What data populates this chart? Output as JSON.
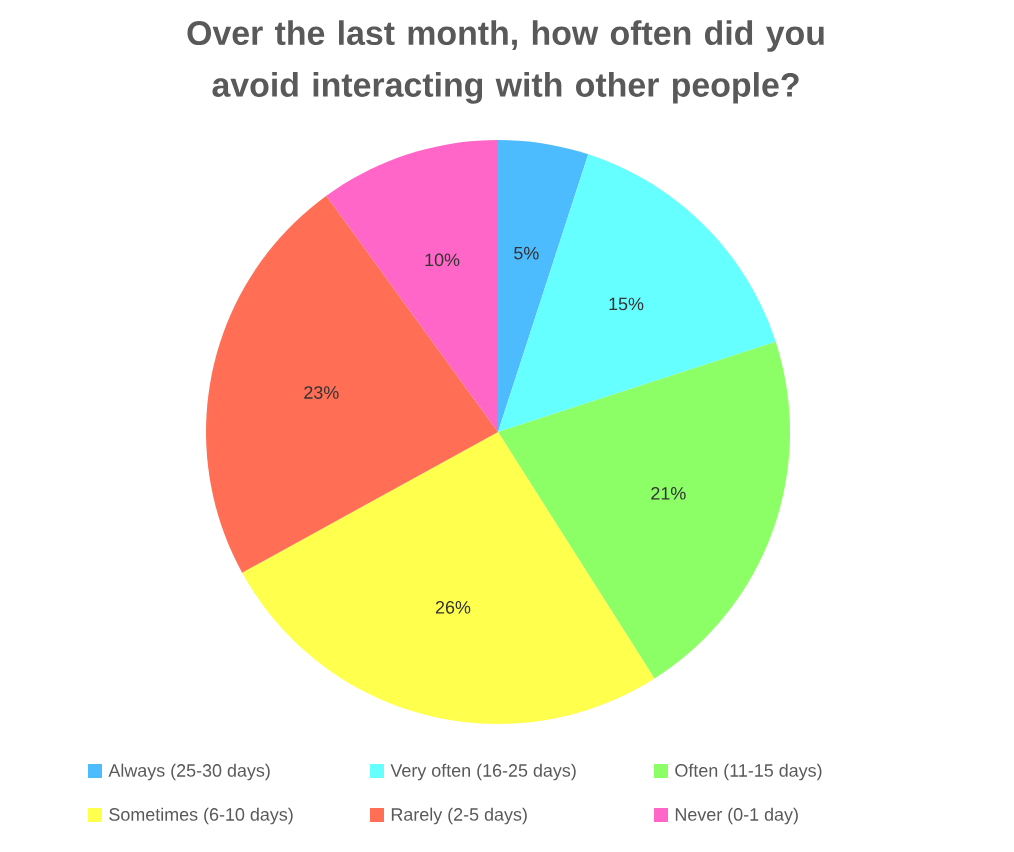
{
  "chart_data": {
    "type": "pie",
    "title": "Over the last month, how often did you avoid interacting with other people?",
    "categories": [
      "Always (25-30 days)",
      "Very often (16-25 days)",
      "Often (11-15 days)",
      "Sometimes (6-10 days)",
      "Rarely (2-5 days)",
      "Never (0-1 day)"
    ],
    "values": [
      5,
      15,
      21,
      26,
      23,
      10
    ],
    "colors": [
      "#4dbcff",
      "#66ffff",
      "#8cff66",
      "#ffff4d",
      "#ff6e55",
      "#ff66c8"
    ],
    "value_labels": [
      "5%",
      "15%",
      "21%",
      "26%",
      "23%",
      "10%"
    ],
    "legend": "bottom"
  }
}
